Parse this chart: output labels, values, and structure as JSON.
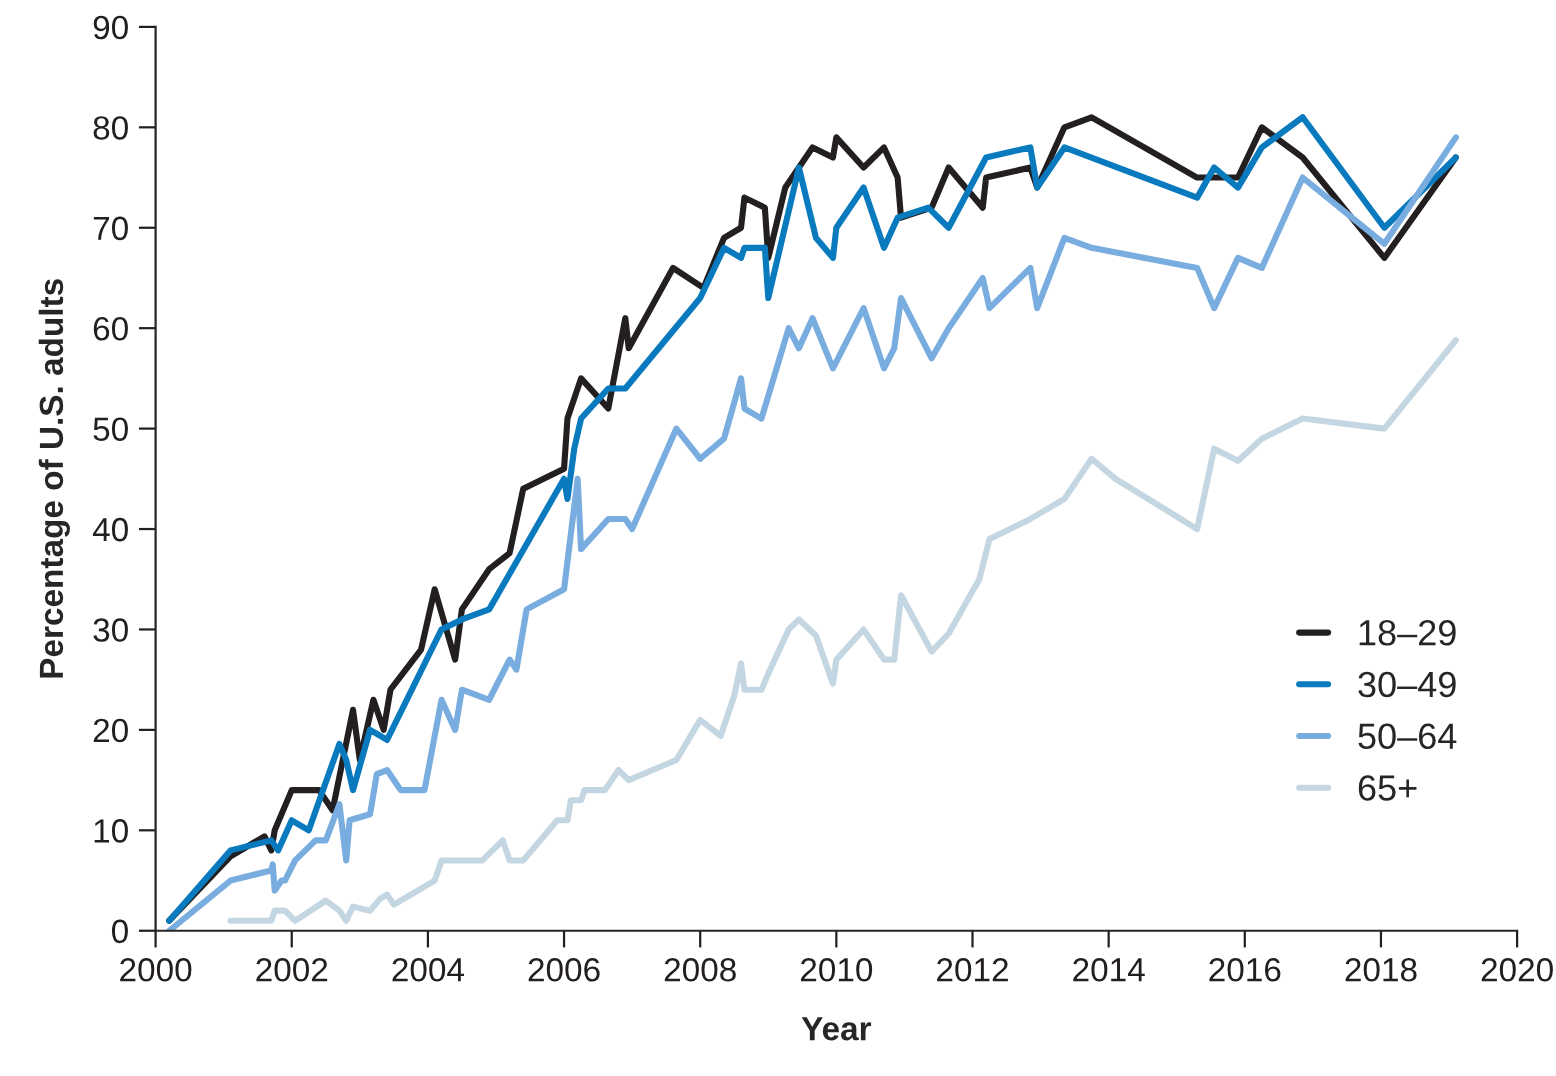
{
  "chart_data": {
    "type": "line",
    "xlabel": "Year",
    "ylabel": "Percentage of U.S. adults",
    "xlim": [
      2000,
      2020
    ],
    "ylim": [
      0,
      90
    ],
    "xticks": [
      2000,
      2002,
      2004,
      2006,
      2008,
      2010,
      2012,
      2014,
      2016,
      2018,
      2020
    ],
    "yticks": [
      0,
      10,
      20,
      30,
      40,
      50,
      60,
      70,
      80,
      90
    ],
    "grid": false,
    "legend": "lower right",
    "marker": "none",
    "line_style": "solid",
    "series": [
      {
        "name": "18–29",
        "color": "#231f20",
        "x": [
          2000.2,
          2001.1,
          2001.6,
          2001.7,
          2001.75,
          2002.0,
          2002.4,
          2002.6,
          2002.9,
          2003.0,
          2003.2,
          2003.35,
          2003.45,
          2003.9,
          2004.1,
          2004.4,
          2004.5,
          2004.9,
          2005.2,
          2005.4,
          2006.0,
          2006.05,
          2006.25,
          2006.65,
          2006.9,
          2006.95,
          2007.6,
          2008.05,
          2008.35,
          2008.6,
          2008.65,
          2008.95,
          2009.0,
          2009.25,
          2009.65,
          2009.95,
          2010.0,
          2010.4,
          2010.7,
          2010.9,
          2010.95,
          2011.4,
          2011.65,
          2012.15,
          2012.2,
          2012.85,
          2012.95,
          2013.35,
          2013.75,
          2015.3,
          2015.9,
          2016.25,
          2016.85,
          2018.05,
          2019.1
        ],
        "values": [
          1,
          7.4,
          9.4,
          8,
          10,
          14,
          14,
          12,
          22,
          17,
          23,
          20,
          24,
          28,
          34,
          27,
          32,
          36,
          37.6,
          44,
          46,
          51,
          55,
          52,
          61,
          58,
          66,
          64,
          69,
          70,
          73,
          72,
          67,
          74,
          78,
          77,
          79,
          76,
          78,
          75,
          71,
          72,
          76,
          72,
          75,
          76,
          74,
          80,
          81,
          75,
          75,
          80,
          77,
          67,
          77
        ]
      },
      {
        "name": "30–49",
        "color": "#0a7abf",
        "x": [
          2000.2,
          2001.1,
          2001.7,
          2001.8,
          2002.0,
          2002.25,
          2002.7,
          2002.8,
          2002.9,
          2003.15,
          2003.4,
          2004.2,
          2004.5,
          2004.9,
          2006.0,
          2006.05,
          2006.15,
          2006.25,
          2006.65,
          2006.9,
          2008.0,
          2008.35,
          2008.6,
          2008.65,
          2008.95,
          2009.0,
          2009.45,
          2009.7,
          2009.95,
          2010.0,
          2010.4,
          2010.7,
          2010.9,
          2011.35,
          2011.65,
          2012.2,
          2012.85,
          2012.95,
          2013.35,
          2015.3,
          2015.55,
          2015.9,
          2016.25,
          2016.85,
          2018.05,
          2019.1
        ],
        "values": [
          1,
          8,
          9,
          8,
          11,
          10,
          18.6,
          17,
          14,
          20,
          19,
          30,
          31,
          32,
          45,
          43,
          48,
          51,
          54,
          54,
          63,
          68,
          67,
          68,
          68,
          63,
          76,
          69,
          67,
          70,
          74,
          68,
          71,
          72,
          70,
          77,
          78,
          74,
          78,
          73,
          76,
          74,
          78,
          81,
          70,
          77
        ]
      },
      {
        "name": "50–64",
        "color": "#7aaddf",
        "x": [
          2000.2,
          2001.1,
          2001.7,
          2001.72,
          2001.75,
          2001.85,
          2001.9,
          2002.05,
          2002.35,
          2002.5,
          2002.7,
          2002.8,
          2002.85,
          2003.15,
          2003.25,
          2003.4,
          2003.6,
          2003.95,
          2004.2,
          2004.4,
          2004.5,
          2004.9,
          2005.2,
          2005.3,
          2005.45,
          2006.0,
          2006.2,
          2006.25,
          2006.65,
          2006.9,
          2007.0,
          2007.65,
          2008.0,
          2008.35,
          2008.6,
          2008.65,
          2008.9,
          2009.3,
          2009.45,
          2009.65,
          2009.95,
          2010.4,
          2010.7,
          2010.85,
          2010.95,
          2011.4,
          2011.65,
          2012.15,
          2012.25,
          2012.85,
          2012.95,
          2013.35,
          2013.75,
          2015.3,
          2015.55,
          2015.9,
          2016.25,
          2016.85,
          2018.05,
          2019.1
        ],
        "values": [
          0,
          5,
          6,
          6.6,
          4,
          5,
          5,
          7,
          9,
          9,
          12.6,
          7,
          11,
          11.6,
          15.6,
          16,
          14,
          14,
          23,
          20,
          24,
          23,
          27,
          26,
          32,
          34,
          45,
          38,
          41,
          41,
          40,
          50,
          47,
          49,
          55,
          52,
          51,
          60,
          58,
          61,
          56,
          62,
          56,
          58,
          63,
          57,
          60,
          65,
          62,
          66,
          62,
          69,
          68,
          66,
          62,
          67,
          66,
          75,
          68.4,
          79
        ]
      },
      {
        "name": "65+",
        "color": "#c5d6e3",
        "x": [
          2001.1,
          2001.7,
          2001.75,
          2001.9,
          2002.05,
          2002.5,
          2002.7,
          2002.8,
          2002.9,
          2003.15,
          2003.3,
          2003.4,
          2003.5,
          2003.95,
          2004.1,
          2004.2,
          2004.8,
          2005.1,
          2005.2,
          2005.4,
          2005.9,
          2006.05,
          2006.1,
          2006.25,
          2006.3,
          2006.6,
          2006.8,
          2006.95,
          2007.65,
          2008.0,
          2008.3,
          2008.5,
          2008.6,
          2008.65,
          2008.9,
          2009.0,
          2009.3,
          2009.45,
          2009.7,
          2009.95,
          2010.0,
          2010.4,
          2010.7,
          2010.85,
          2010.95,
          2011.4,
          2011.65,
          2012.1,
          2012.25,
          2012.85,
          2013.35,
          2013.75,
          2014.1,
          2015.3,
          2015.55,
          2015.9,
          2016.25,
          2016.85,
          2018.05,
          2019.1
        ],
        "values": [
          1,
          1,
          2,
          2,
          1,
          3,
          2,
          1,
          2.4,
          2,
          3.2,
          3.6,
          2.6,
          4.4,
          5,
          7,
          7,
          9,
          7,
          7,
          11,
          11,
          13,
          13,
          14,
          14,
          16,
          15,
          17,
          21,
          19.4,
          23.4,
          26.6,
          24,
          24,
          25.6,
          30,
          31,
          29.4,
          24.6,
          27,
          30,
          27,
          27,
          33.4,
          27.8,
          29.6,
          35,
          39,
          41,
          43,
          47,
          45,
          40,
          48,
          46.8,
          49,
          51,
          50,
          58.8
        ]
      }
    ]
  }
}
